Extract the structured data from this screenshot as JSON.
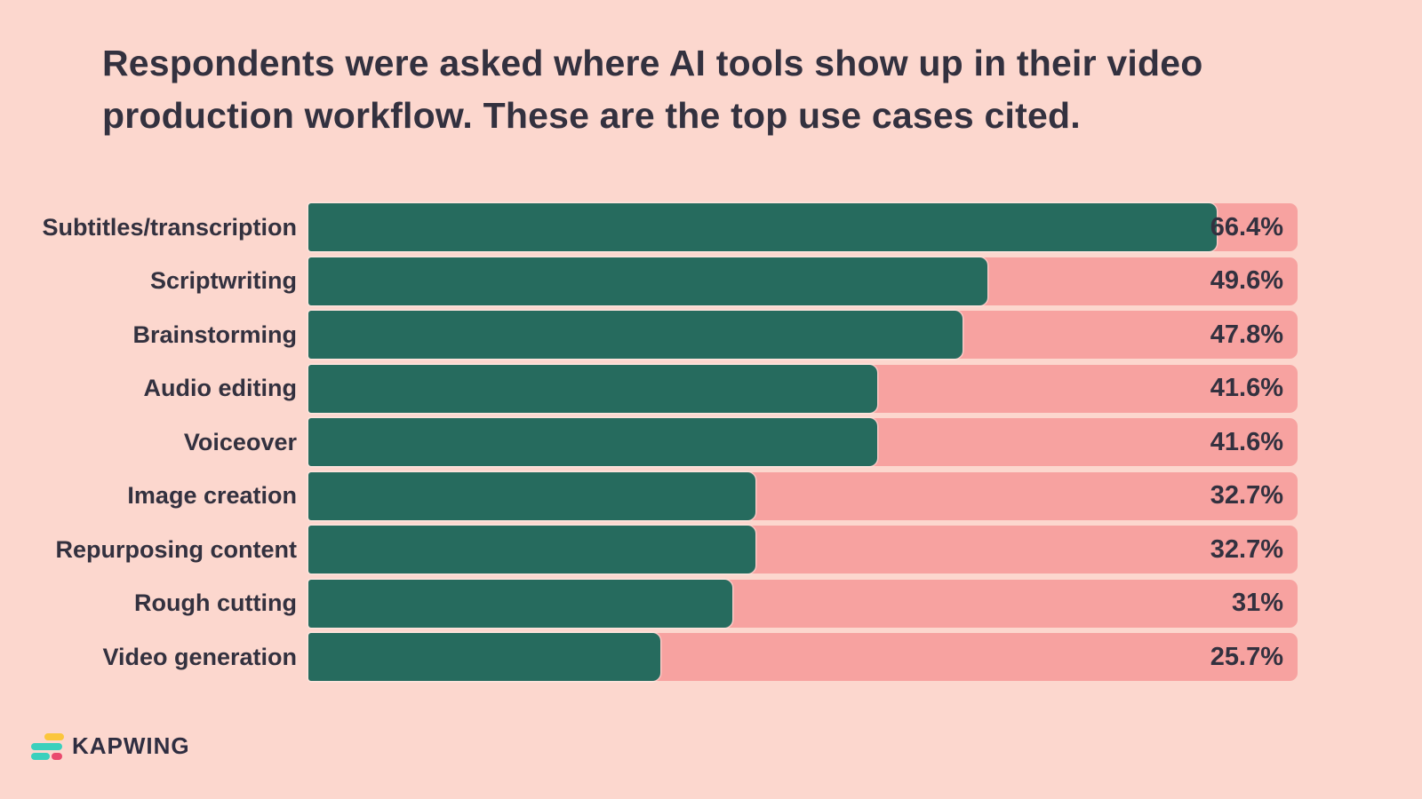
{
  "chart_data": {
    "type": "bar",
    "orientation": "horizontal",
    "title": "Respondents were asked where AI tools show up in their video production workflow. These are the top use cases cited.",
    "title_lines": [
      "Respondents were asked where AI tools show up in their video",
      "production workflow. These are the top use cases cited."
    ],
    "categories": [
      "Subtitles/transcription",
      "Scriptwriting",
      "Brainstorming",
      "Audio editing",
      "Voiceover",
      "Image creation",
      "Repurposing content",
      "Rough cutting",
      "Video generation"
    ],
    "values": [
      66.4,
      49.6,
      47.8,
      41.6,
      41.6,
      32.7,
      32.7,
      31,
      25.7
    ],
    "value_labels": [
      "66.4%",
      "49.6%",
      "47.8%",
      "41.6%",
      "41.6%",
      "32.7%",
      "32.7%",
      "31%",
      "25.7%"
    ],
    "unit": "%",
    "xlim": [
      0,
      72.3
    ],
    "xlabel": "",
    "ylabel": "",
    "grid": false,
    "legend": false,
    "colors": {
      "background": "#fcd7ce",
      "track": "#f7a2a0",
      "bar": "#266b5e",
      "text": "#33313f"
    }
  },
  "footer": {
    "brand": "KAPWING",
    "logo_colors": {
      "yellow": "#fbc63d",
      "teal": "#3bd0bd",
      "pink": "#ea4a6e"
    }
  }
}
